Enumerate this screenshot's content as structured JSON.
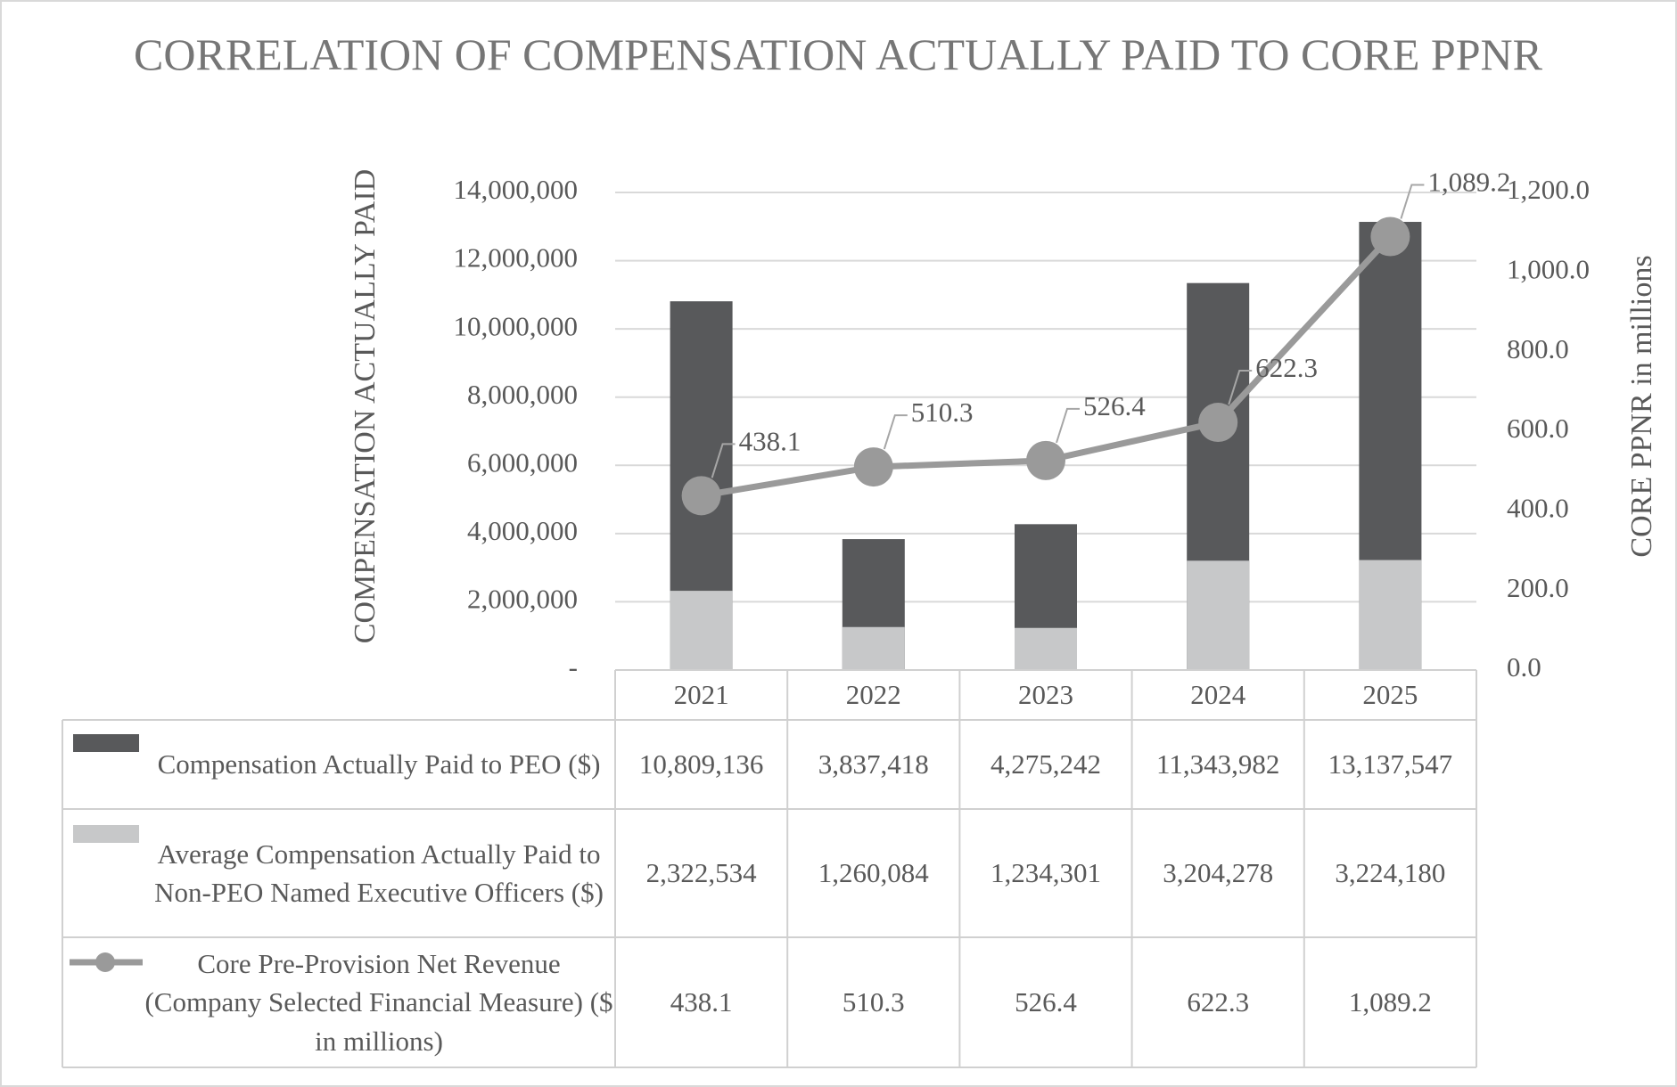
{
  "chart_data": {
    "type": "bar",
    "title": "CORRELATION OF COMPENSATION ACTUALLY PAID TO CORE PPNR",
    "ylabel": "COMPENSATION ACTUALLY PAID",
    "y2label": "CORE PPNR in millions",
    "categories": [
      "2021",
      "2022",
      "2023",
      "2024",
      "2025"
    ],
    "series": [
      {
        "name": "Compensation Actually Paid to PEO ($)",
        "color": "#58595b",
        "values": [
          10809136,
          3837418,
          4275242,
          11343982,
          13137547
        ],
        "value_labels": [
          "10,809,136",
          "3,837,418",
          "4,275,242",
          "11,343,982",
          "13,137,547"
        ]
      },
      {
        "name": "Average Compensation Actually Paid to Non-PEO Named Executive Officers ($)",
        "color": "#c7c8c9",
        "values": [
          2322534,
          1260084,
          1234301,
          3204278,
          3224180
        ],
        "value_labels": [
          "2,322,534",
          "1,260,084",
          "1,234,301",
          "3,204,278",
          "3,224,180"
        ]
      },
      {
        "name": "Core Pre-Provision Net Revenue (Company Selected Financial Measure) ($ in millions)",
        "color": "#9a9a9a",
        "type": "line",
        "axis": "y2",
        "values": [
          438.1,
          510.3,
          526.4,
          622.3,
          1089.2
        ],
        "value_labels": [
          "438.1",
          "510.3",
          "526.4",
          "622.3",
          "1,089.2"
        ]
      }
    ],
    "ylim": [
      0,
      14000000
    ],
    "yticks": [
      {
        "value": 0,
        "label": "-"
      },
      {
        "value": 2000000,
        "label": "2,000,000"
      },
      {
        "value": 4000000,
        "label": "4,000,000"
      },
      {
        "value": 6000000,
        "label": "6,000,000"
      },
      {
        "value": 8000000,
        "label": "8,000,000"
      },
      {
        "value": 10000000,
        "label": "10,000,000"
      },
      {
        "value": 12000000,
        "label": "12,000,000"
      },
      {
        "value": 14000000,
        "label": "14,000,000"
      }
    ],
    "y2lim": [
      0,
      1200
    ],
    "y2ticks": [
      {
        "value": 0,
        "label": "0.0"
      },
      {
        "value": 200,
        "label": "200.0"
      },
      {
        "value": 400,
        "label": "400.0"
      },
      {
        "value": 600,
        "label": "600.0"
      },
      {
        "value": 800,
        "label": "800.0"
      },
      {
        "value": 1000,
        "label": "1,000.0"
      },
      {
        "value": 1200,
        "label": "1,200.0"
      }
    ],
    "grid": true
  }
}
